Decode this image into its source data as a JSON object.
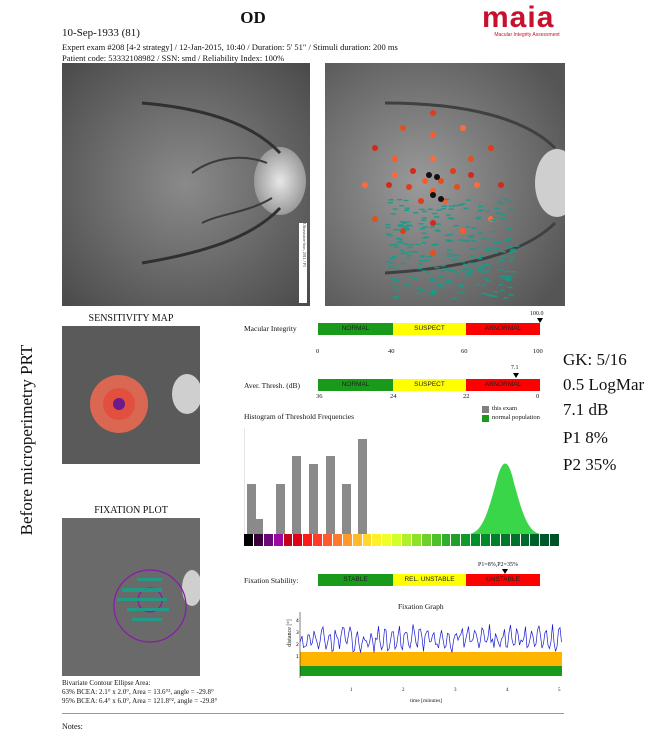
{
  "side_label": "Before microperimetry PRT",
  "report": {
    "eye": "OD",
    "date_line": "10-Sep-1933 (81)",
    "exam_line": "Expert exam #208 [4-2 strategy] / 12-Jan-2015, 10:40 / Duration: 5' 51\" / Stimuli duration: 200 ms",
    "patient_line": "Patient code: 53332108982 / SSN: smd / Reliability Index: 100%",
    "logo_text": "maia",
    "logo_sub": "Macular Integrity Assessment"
  },
  "panels": {
    "sensitivity_map_title": "SENSITIVITY MAP",
    "fixation_plot_title": "FIXATION PLOT",
    "watermark": "Ultravision-fixer, 2011 / P3"
  },
  "macular_integrity": {
    "label": "Macular Integrity",
    "value": "100.0",
    "segments": [
      "NORMAL",
      "SUSPECT",
      "ABNORMAL"
    ],
    "colors": [
      "#1a9a1a",
      "#ffff00",
      "#ff0000"
    ],
    "ticks": [
      "0",
      "40",
      "60",
      "100"
    ]
  },
  "aver_thresh": {
    "label": "Aver. Thresh. (dB)",
    "value": "7.1",
    "segments": [
      "NORMAL",
      "SUSPECT",
      "ABNORMAL"
    ],
    "ticks": [
      "36",
      "24",
      "22",
      "0"
    ]
  },
  "histogram": {
    "title": "Histogram of Threshold Frequencies",
    "legend_exam": "this exam",
    "legend_normal": "normal population",
    "bar_labels": [
      "",
      "",
      "",
      "",
      "",
      "",
      "",
      "",
      ""
    ]
  },
  "fixation_stability": {
    "label": "Fixation Stability:",
    "p_label": "P1=8%,P2=35%",
    "segments": [
      "STABLE",
      "REL. UNSTABLE",
      "UNSTABLE"
    ]
  },
  "fixation_graph": {
    "title": "Fixation Graph",
    "ylabel": "distance [°]",
    "xlabel": "time [minutes]",
    "x_ticks": [
      "1",
      "2",
      "3",
      "4",
      "5"
    ],
    "y_ticks": [
      "4",
      "3",
      "2",
      "1"
    ]
  },
  "bcea": {
    "title": "Bivariate Contour Ellipse Area:",
    "line63": "63% BCEA: 2.1° x 2.0°, Area = 13.6°², angle = -29.8°",
    "line95": "95% BCEA: 6.4° x 6.0°, Area = 121.8°², angle = -29.8°"
  },
  "stats": {
    "gk": "GK: 5/16",
    "logmar": "0.5 LogMar",
    "db": "7.1 dB",
    "p1": "P1 8%",
    "p2": "P2 35%"
  },
  "notes_label": "Notes:"
}
